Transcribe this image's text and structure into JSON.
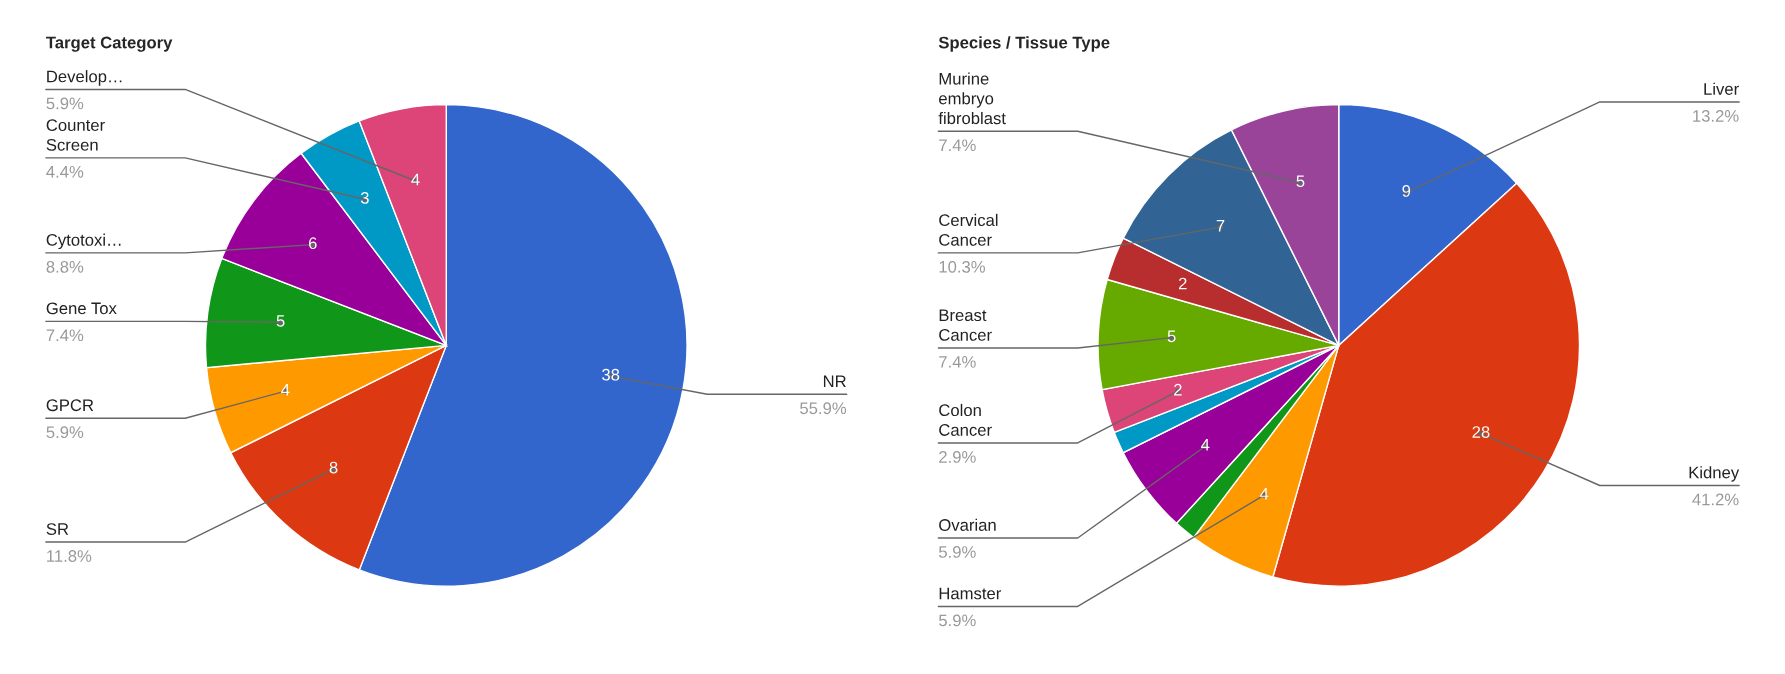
{
  "chart_data": [
    {
      "type": "pie",
      "title": "Target Category",
      "categories": [
        "NR",
        "SR",
        "GPCR",
        "Gene Tox",
        "Cytotoxi…",
        "Counter\nScreen",
        "Develop…"
      ],
      "values": [
        38,
        8,
        4,
        5,
        6,
        3,
        4
      ],
      "colors": [
        "#3366cc",
        "#dc3912",
        "#ff9900",
        "#109618",
        "#990099",
        "#0099c6",
        "#dd4477"
      ],
      "data_labels": true,
      "annotations": [
        {
          "text": "55.9%",
          "x": "NR"
        },
        {
          "text": "11.8%",
          "x": "SR"
        },
        {
          "text": "5.9%",
          "x": "GPCR"
        },
        {
          "text": "7.4%",
          "x": "Gene Tox"
        },
        {
          "text": "8.8%",
          "x": "Cytotoxi…"
        },
        {
          "text": "4.4%",
          "x": "Counter\nScreen"
        },
        {
          "text": "5.9%",
          "x": "Develop…"
        }
      ]
    },
    {
      "type": "pie",
      "title": "Species / Tissue Type",
      "categories": [
        "Liver",
        "Kidney",
        "Hamster",
        null,
        "Ovarian",
        null,
        "Colon\nCancer",
        "Breast\nCancer",
        null,
        "Cervical\nCancer",
        "Murine\nembryo\nfibroblast"
      ],
      "values": [
        9,
        28,
        4,
        1,
        4,
        1,
        2,
        5,
        2,
        7,
        5
      ],
      "colors": [
        "#3366cc",
        "#dc3912",
        "#ff9900",
        "#109618",
        "#990099",
        "#0099c6",
        "#dd4477",
        "#66aa00",
        "#b82e2e",
        "#316395",
        "#994499"
      ],
      "value_labels": [
        "9",
        "28",
        "4",
        null,
        "4",
        null,
        "2",
        "5",
        "2",
        "7",
        "5"
      ],
      "annotations": [
        {
          "text": "13.2%",
          "x": "Liver"
        },
        {
          "text": "41.2%",
          "x": "Kidney"
        },
        {
          "text": "5.9%",
          "x": "Hamster"
        },
        {
          "text": "5.9%",
          "x": "Ovarian"
        },
        {
          "text": "2.9%",
          "x": "Colon\nCancer"
        },
        {
          "text": "7.4%",
          "x": "Breast\nCancer"
        },
        {
          "text": "10.3%",
          "x": "Cervical\nCancer"
        },
        {
          "text": "7.4%",
          "x": "Murine\nembryo\nfibroblast"
        }
      ]
    }
  ]
}
